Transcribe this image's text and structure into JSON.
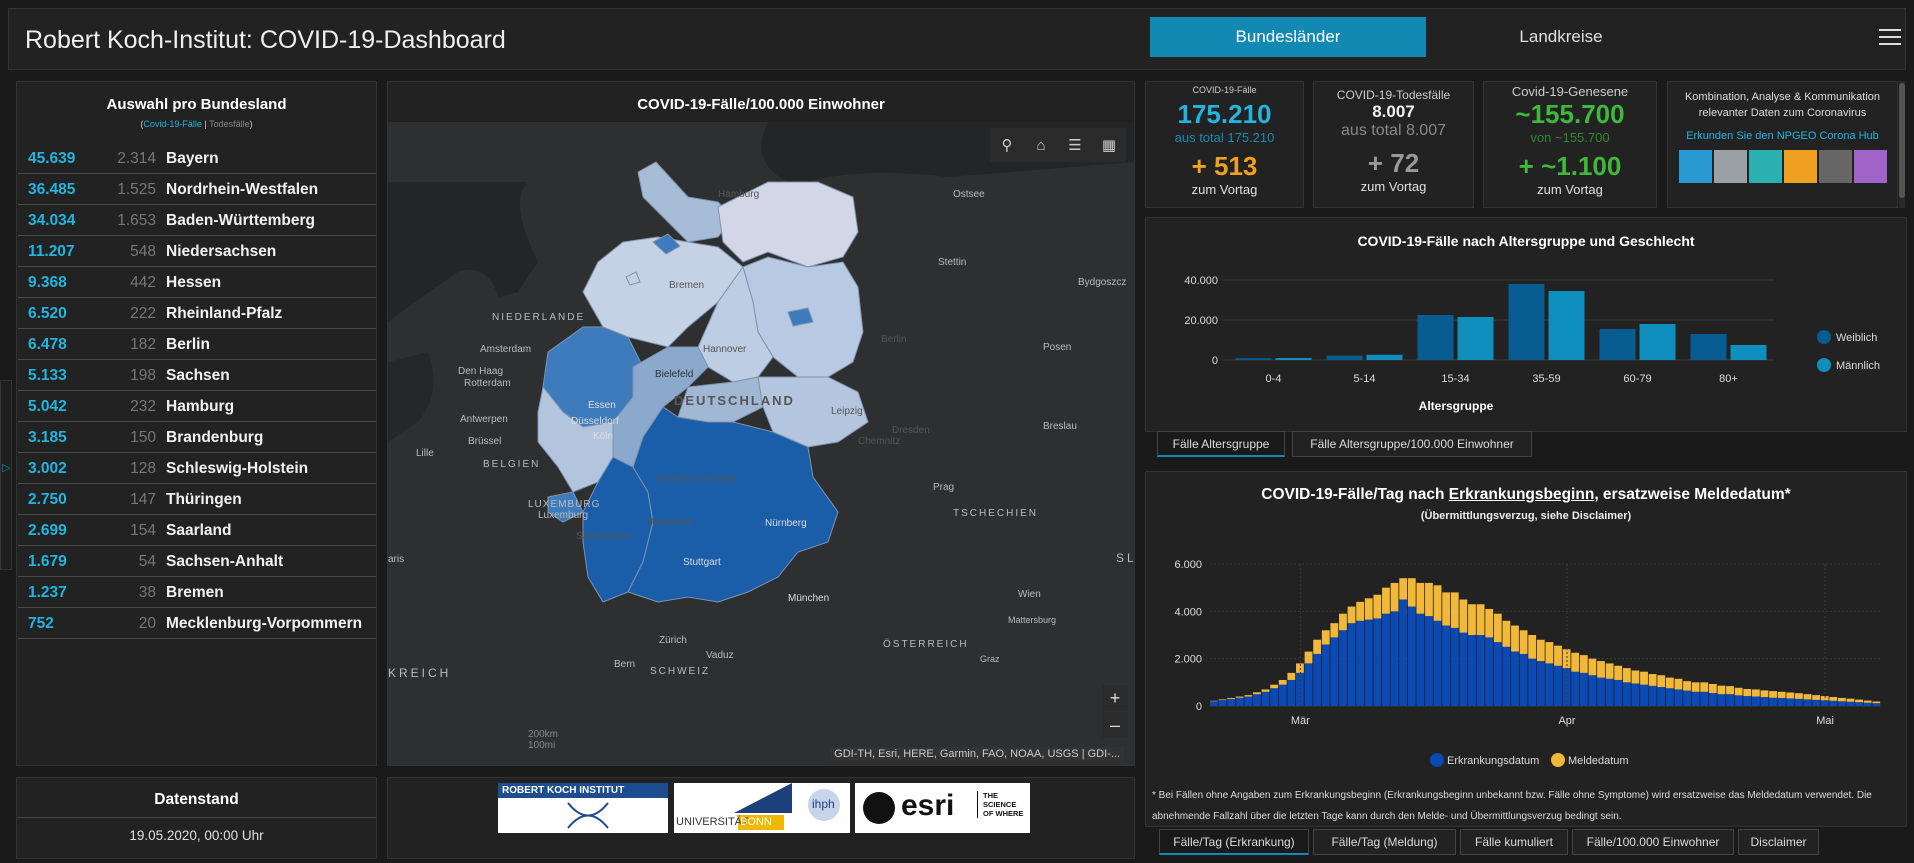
{
  "header": {
    "title": "Robert Koch-Institut: COVID-19-Dashboard",
    "tab_active": "Bundesländer",
    "tab_inactive": "Landkreise"
  },
  "list": {
    "title": "Auswahl pro Bundesland",
    "subtitle_cases": "Covid-19-Fälle",
    "subtitle_sep": " | ",
    "subtitle_deaths": "Todesfälle",
    "rows": [
      {
        "cases": "45.639",
        "deaths": "2.314",
        "state": "Bayern"
      },
      {
        "cases": "36.485",
        "deaths": "1.525",
        "state": "Nordrhein-Westfalen"
      },
      {
        "cases": "34.034",
        "deaths": "1.653",
        "state": "Baden-Württemberg"
      },
      {
        "cases": "11.207",
        "deaths": "548",
        "state": "Niedersachsen"
      },
      {
        "cases": "9.368",
        "deaths": "442",
        "state": "Hessen"
      },
      {
        "cases": "6.520",
        "deaths": "222",
        "state": "Rheinland-Pfalz"
      },
      {
        "cases": "6.478",
        "deaths": "182",
        "state": "Berlin"
      },
      {
        "cases": "5.133",
        "deaths": "198",
        "state": "Sachsen"
      },
      {
        "cases": "5.042",
        "deaths": "232",
        "state": "Hamburg"
      },
      {
        "cases": "3.185",
        "deaths": "150",
        "state": "Brandenburg"
      },
      {
        "cases": "3.002",
        "deaths": "128",
        "state": "Schleswig-Holstein"
      },
      {
        "cases": "2.750",
        "deaths": "147",
        "state": "Thüringen"
      },
      {
        "cases": "2.699",
        "deaths": "154",
        "state": "Saarland"
      },
      {
        "cases": "1.679",
        "deaths": "54",
        "state": "Sachsen-Anhalt"
      },
      {
        "cases": "1.237",
        "deaths": "38",
        "state": "Bremen"
      },
      {
        "cases": "752",
        "deaths": "20",
        "state": "Mecklenburg-Vorpommern"
      }
    ]
  },
  "datenstand": {
    "title": "Datenstand",
    "value": "19.05.2020, 00:00 Uhr"
  },
  "map": {
    "title": "COVID-19-Fälle/100.000 Einwohner",
    "attribution": "GDI-TH, Esri, HERE, Garmin, FAO, NOAA, USGS | GDI-...",
    "scale_km": "200km",
    "scale_mi": "100mi",
    "labels": {
      "ostsee": "Ostsee",
      "hamburg": "Hamburg",
      "stettin": "Stettin",
      "bydgoszcz": "Bydgoszcz",
      "bremen": "Bremen",
      "niederlande": "NIEDERLANDE",
      "amsterdam": "Amsterdam",
      "hannover": "Hannover",
      "berlin": "Berlin",
      "posen": "Posen",
      "denhaag": "Den Haag",
      "rotterdam": "Rotterdam",
      "bielefeld": "Bielefeld",
      "essen": "Essen",
      "deutschland": "DEUTSCHLAND",
      "duesseldorf": "Düsseldorf",
      "leipzig": "Leipzig",
      "dresden": "Dresden",
      "breslau": "Breslau",
      "antwerpen": "Antwerpen",
      "koeln": "Köln",
      "chemnitz": "Chemnitz",
      "bruessel": "Brüssel",
      "lille": "Lille",
      "belgien": "BELGIEN",
      "frankfurt": "Frankfurt am Main",
      "prag": "Prag",
      "luxemburg_country": "LUXEMBURG",
      "luxemburg": "Luxemburg",
      "tschechien": "TSCHECHIEN",
      "mannheim": "Mannheim",
      "nuernberg": "Nürnberg",
      "saarbruecken": "Saarbrücken",
      "paris": "aris",
      "stuttgart": "Stuttgart",
      "wien": "Wien",
      "muenchen": "München",
      "mattersburg": "Mattersburg",
      "zuerich": "Zürich",
      "oesterreich": "ÖSTERREICH",
      "vaduz": "Vaduz",
      "graz": "Graz",
      "bern": "Bern",
      "schweiz": "SCHWEIZ",
      "kreich": "KREICH",
      "sl": "SL"
    }
  },
  "kpis": {
    "cases": {
      "label": "COVID-19-Fälle",
      "value": "175.210",
      "total": "aus total 175.210",
      "delta": "+ 513",
      "vortag": "zum Vortag"
    },
    "deaths": {
      "label": "COVID-19-Todesfälle",
      "value": "8.007",
      "total": "aus total 8.007",
      "delta": "+ 72",
      "vortag": "zum Vortag"
    },
    "recovered": {
      "label": "Covid-19-Genesene",
      "value": "~155.700",
      "total": "von ~155.700",
      "delta": "+ ~1.100",
      "vortag": "zum Vortag"
    }
  },
  "info": {
    "text": "Kombination, Analyse & Kommunikation relevanter Daten zum Coronavirus",
    "link": "Erkunden Sie den NPGEO Corona Hub"
  },
  "age_tabs": [
    "Fälle Altersgruppe",
    "Fälle Altersgruppe/100.000 Einwohner"
  ],
  "epi_tabs": [
    "Fälle/Tag (Erkrankung)",
    "Fälle/Tag (Meldung)",
    "Fälle kumuliert",
    "Fälle/100.000 Einwohner",
    "Disclaimer"
  ],
  "epi_text": {
    "title_pre": "COVID-19-Fälle/Tag nach ",
    "title_link": "Erkrankungsbeginn",
    "title_post": ", ersatzweise Meldedatum*",
    "subtitle": "(Übermittlungsverzug, siehe Disclaimer)",
    "footnote": "* Bei Fällen ohne Angaben zum Erkrankungsbeginn (Erkrankungsbeginn unbekannt bzw. Fälle ohne Symptome) wird ersatzweise das Meldedatum verwendet. Die abnehmende Fallzahl über die letzten Tage kann durch den Melde- und Übermittlungsverzug bedingt sein."
  },
  "logos": {
    "rki": "ROBERT KOCH INSTITUT",
    "bonn_uni": "UNIVERSITÄT",
    "bonn": "BONN",
    "ihph": "ihph",
    "esri": "esri",
    "esri_tag": "THE SCIENCE OF WHERE"
  },
  "colors": {
    "accent": "#1189b3",
    "cases": "#21b5e0",
    "deltaCases": "#f0a020",
    "recovered": "#3fb93a",
    "female": "#075c91",
    "male": "#0e8fbd",
    "onset": "#0b4ab4",
    "report": "#f2b83a"
  },
  "chart_data": [
    {
      "type": "bar",
      "title": "COVID-19-Fälle nach Altersgruppe und Geschlecht",
      "xlabel": "Altersgruppe",
      "ylabel": "",
      "categories": [
        "0-4",
        "5-14",
        "15-34",
        "35-59",
        "60-79",
        "80+"
      ],
      "ylim": [
        0,
        40000
      ],
      "yticks": [
        "0",
        "20.000",
        "40.000"
      ],
      "legend_position": "right",
      "series": [
        {
          "name": "Weiblich",
          "values": [
            900,
            2200,
            22500,
            38000,
            15500,
            13000
          ]
        },
        {
          "name": "Männlich",
          "values": [
            1000,
            2600,
            21500,
            34500,
            18000,
            7500
          ]
        }
      ]
    },
    {
      "type": "bar",
      "stacked": true,
      "title": "COVID-19-Fälle/Tag nach Erkrankungsbeginn, ersatzweise Meldedatum*",
      "ylim": [
        0,
        6000
      ],
      "yticks": [
        "0",
        "2.000",
        "4.000",
        "6.000"
      ],
      "xticks": [
        "Mär",
        "Apr",
        "Mai"
      ],
      "legend_position": "bottom",
      "x_start": "2020-02-20",
      "series": [
        {
          "name": "Erkrankungsdatum",
          "values": [
            200,
            250,
            300,
            350,
            400,
            500,
            600,
            750,
            900,
            1100,
            1400,
            1800,
            2200,
            2600,
            2900,
            3200,
            3500,
            3600,
            3650,
            3700,
            3900,
            4000,
            4500,
            4200,
            3900,
            3800,
            3600,
            3400,
            3300,
            3100,
            3000,
            3000,
            2900,
            2700,
            2500,
            2300,
            2200,
            2000,
            1900,
            1800,
            1700,
            1600,
            1450,
            1400,
            1300,
            1200,
            1150,
            1100,
            1000,
            950,
            900,
            850,
            800,
            750,
            700,
            650,
            600,
            600,
            550,
            500,
            500,
            450,
            420,
            400,
            380,
            350,
            340,
            320,
            300,
            280,
            260,
            240,
            220,
            200,
            180,
            160,
            140,
            120
          ]
        },
        {
          "name": "Meldedatum",
          "values": [
            20,
            30,
            40,
            50,
            60,
            80,
            100,
            150,
            200,
            300,
            400,
            500,
            600,
            600,
            600,
            700,
            700,
            800,
            900,
            1000,
            1100,
            1200,
            900,
            1200,
            1300,
            1400,
            1500,
            1400,
            1500,
            1400,
            1300,
            1300,
            1200,
            1200,
            1100,
            1100,
            1000,
            1000,
            900,
            900,
            850,
            800,
            800,
            750,
            700,
            700,
            650,
            600,
            600,
            550,
            550,
            500,
            500,
            450,
            450,
            400,
            400,
            400,
            380,
            360,
            340,
            320,
            300,
            300,
            280,
            280,
            260,
            250,
            240,
            220,
            200,
            180,
            160,
            140,
            130,
            110,
            90,
            70
          ]
        }
      ]
    }
  ]
}
